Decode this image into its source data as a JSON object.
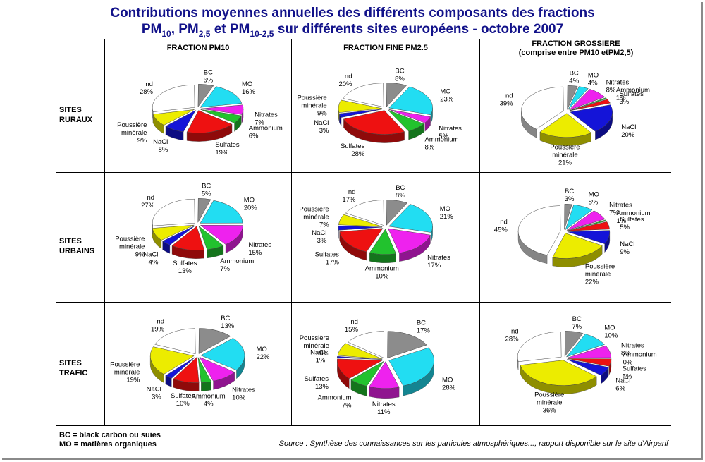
{
  "title": {
    "line1": "Contributions moyennes annuelles des différents composants des fractions",
    "pm10": "PM",
    "pm10_sub": "10",
    "pm25": ", PM",
    "pm25_sub": "2,5",
    "pmc": " et PM",
    "pmc_sub": "10-2,5",
    "rest": " sur différents sites européens - octobre 2007"
  },
  "columns": {
    "pm10": "FRACTION PM10",
    "pm25": "FRACTION FINE PM2.5",
    "coarse_1": "FRACTION GROSSIERE",
    "coarse_2": "(comprise entre PM10 etPM2,5)"
  },
  "rows": {
    "rural_1": "SITES",
    "rural_2": "RURAUX",
    "urban_1": "SITES",
    "urban_2": "URBAINS",
    "traffic_1": "SITES",
    "traffic_2": "TRAFIC"
  },
  "legend": {
    "bc": "BC = black carbon ou suies",
    "mo": "MO = matières organiques"
  },
  "source": "Source : Synthèse des connaissances sur les particules atmosphériques..., rapport disponible sur le site d'Airparif",
  "colors": {
    "BC": "#8c8c8c",
    "MO": "#22ddf2",
    "Nitrates": "#ee22ee",
    "Ammonium": "#22c22e",
    "Sulfates": "#ee1111",
    "NaCl": "#1414d8",
    "Poussière minérale": "#ecec00",
    "nd": "#ffffff",
    "title": "#12128a"
  },
  "chart_data": [
    {
      "type": "pie",
      "row": "SITES RURAUX",
      "column": "FRACTION PM10",
      "categories": [
        "BC",
        "MO",
        "Nitrates",
        "Ammonium",
        "Sulfates",
        "NaCl",
        "Poussière minérale",
        "nd"
      ],
      "values": [
        6,
        16,
        7,
        6,
        19,
        8,
        9,
        28
      ],
      "labels": [
        "BC\n6%",
        "MO\n16%",
        "Nitrates\n7%",
        "Ammonium\n6%",
        "Sulfates\n19%",
        "NaCl\n8%",
        "Poussière\nminérale\n9%",
        "nd\n28%"
      ]
    },
    {
      "type": "pie",
      "row": "SITES RURAUX",
      "column": "FRACTION FINE PM2.5",
      "categories": [
        "BC",
        "MO",
        "Nitrates",
        "Ammonium",
        "Sulfates",
        "NaCl",
        "Poussière minérale",
        "nd"
      ],
      "values": [
        8,
        23,
        5,
        8,
        28,
        3,
        9,
        20
      ],
      "labels": [
        "BC\n8%",
        "MO\n23%",
        "Nitrates\n5%",
        "Ammonium\n8%",
        "Sulfates\n28%",
        "NaCl\n3%",
        "Poussière\nminérale\n9%",
        "nd\n20%"
      ]
    },
    {
      "type": "pie",
      "row": "SITES RURAUX",
      "column": "FRACTION GROSSIERE",
      "categories": [
        "BC",
        "MO",
        "Nitrates",
        "Ammonium",
        "Sulfates",
        "NaCl",
        "Poussière minérale",
        "nd"
      ],
      "values": [
        4,
        4,
        8,
        1,
        3,
        20,
        21,
        39
      ],
      "labels": [
        "BC\n4%",
        "MO\n4%",
        "Nitrates\n8%",
        "Ammonium\n1%",
        "Sulfates\n3%",
        "NaCl\n20%",
        "Poussière\nminérale\n21%",
        "nd\n39%"
      ]
    },
    {
      "type": "pie",
      "row": "SITES URBAINS",
      "column": "FRACTION PM10",
      "categories": [
        "BC",
        "MO",
        "Nitrates",
        "Ammonium",
        "Sulfates",
        "NaCl",
        "Poussière minérale",
        "nd"
      ],
      "values": [
        5,
        20,
        15,
        7,
        13,
        4,
        9,
        27
      ],
      "labels": [
        "BC\n5%",
        "MO\n20%",
        "Nitrates\n15%",
        "Ammonium\n7%",
        "Sulfates\n13%",
        "NaCl\n4%",
        "Poussière\nminérale\n9%",
        "nd\n27%"
      ]
    },
    {
      "type": "pie",
      "row": "SITES URBAINS",
      "column": "FRACTION FINE PM2.5",
      "categories": [
        "BC",
        "MO",
        "Nitrates",
        "Ammonium",
        "Sulfates",
        "NaCl",
        "Poussière minérale",
        "nd"
      ],
      "values": [
        8,
        21,
        17,
        10,
        17,
        3,
        7,
        17
      ],
      "labels": [
        "BC\n8%",
        "MO\n21%",
        "Nitrates\n17%",
        "Ammonium\n10%",
        "Sulfates\n17%",
        "NaCl\n3%",
        "Poussière\nminérale\n7%",
        "nd\n17%"
      ]
    },
    {
      "type": "pie",
      "row": "SITES URBAINS",
      "column": "FRACTION GROSSIERE",
      "categories": [
        "BC",
        "MO",
        "Nitrates",
        "Ammonium",
        "Sulfates",
        "NaCl",
        "Poussière minérale",
        "nd"
      ],
      "values": [
        3,
        8,
        7,
        1,
        5,
        9,
        22,
        45
      ],
      "labels": [
        "BC\n3%",
        "MO\n8%",
        "Nitrates\n7%",
        "Ammonium\n1%",
        "Sulfates\n5%",
        "NaCl\n9%",
        "Poussière\nminérale\n22%",
        "nd\n45%"
      ]
    },
    {
      "type": "pie",
      "row": "SITES TRAFIC",
      "column": "FRACTION PM10",
      "categories": [
        "BC",
        "MO",
        "Nitrates",
        "Ammonium",
        "Sulfates",
        "NaCl",
        "Poussière minérale",
        "nd"
      ],
      "values": [
        13,
        22,
        10,
        4,
        10,
        3,
        19,
        19
      ],
      "labels": [
        "BC\n13%",
        "MO\n22%",
        "Nitrates\n10%",
        "Ammonium\n4%",
        "Sulfates\n10%",
        "NaCl\n3%",
        "Poussière\nminérale\n19%",
        "nd\n19%"
      ]
    },
    {
      "type": "pie",
      "row": "SITES TRAFIC",
      "column": "FRACTION FINE PM2.5",
      "categories": [
        "BC",
        "MO",
        "Nitrates",
        "Ammonium",
        "Sulfates",
        "NaCl",
        "Poussière minérale",
        "nd"
      ],
      "values": [
        17,
        28,
        11,
        7,
        13,
        1,
        8,
        15
      ],
      "labels": [
        "BC\n17%",
        "MO\n28%",
        "Nitrates\n11%",
        "Ammonium\n7%",
        "Sulfates\n13%",
        "NaCl\n1%",
        "Poussière\nminérale\n8%",
        "nd\n15%"
      ]
    },
    {
      "type": "pie",
      "row": "SITES TRAFIC",
      "column": "FRACTION GROSSIERE",
      "categories": [
        "BC",
        "MO",
        "Nitrates",
        "Ammonium",
        "Sulfates",
        "NaCl",
        "Poussière minérale",
        "nd"
      ],
      "values": [
        7,
        10,
        8,
        0,
        5,
        6,
        36,
        28
      ],
      "labels": [
        "BC\n7%",
        "MO\n10%",
        "Nitrates\n8%",
        "Ammonium\n0%",
        "Sulfates\n5%",
        "NaCl\n6%",
        "Poussière\nminérale\n36%",
        "nd\n28%"
      ]
    }
  ]
}
